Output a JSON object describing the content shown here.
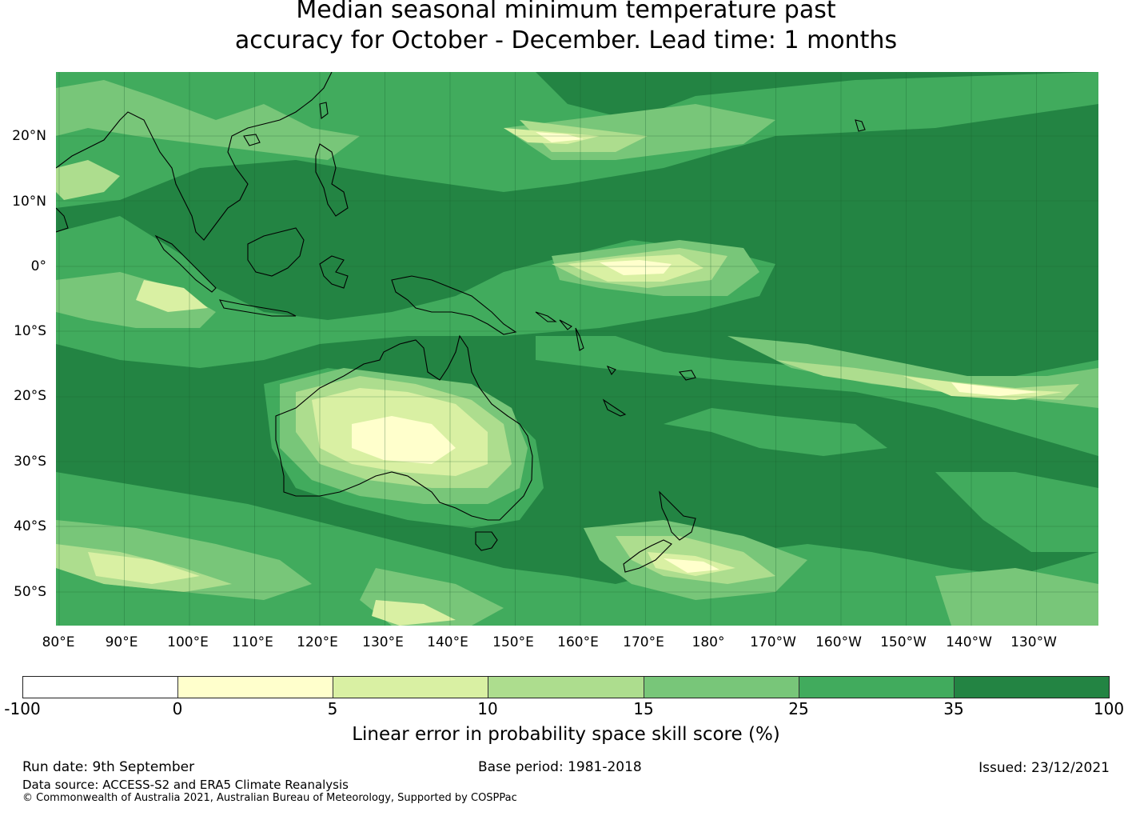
{
  "title": {
    "line1": "Median seasonal minimum temperature past",
    "line2": "accuracy for October - December. Lead time: 1 months"
  },
  "map": {
    "lat_labels": [
      "20°N",
      "10°N",
      "0°",
      "10°S",
      "20°S",
      "30°S",
      "40°S",
      "50°S"
    ],
    "lon_labels": [
      "80°E",
      "90°E",
      "100°E",
      "110°E",
      "120°E",
      "130°E",
      "140°E",
      "150°E",
      "160°E",
      "170°E",
      "180°",
      "170°W",
      "160°W",
      "150°W",
      "140°W",
      "130°W"
    ],
    "lon_range": [
      80,
      240
    ],
    "lat_range": [
      -55,
      30
    ],
    "gridlines": true
  },
  "colorbar": {
    "tick_labels": [
      "-100",
      "0",
      "5",
      "10",
      "15",
      "25",
      "35",
      "100"
    ],
    "colors": [
      "#ffffff",
      "#ffffcc",
      "#d9f0a3",
      "#addd8e",
      "#78c679",
      "#41ab5d",
      "#238443"
    ],
    "label": "Linear error in probability space skill score (%)"
  },
  "footer": {
    "run_date": "Run date: 9th September",
    "base_period": "Base period: 1981-2018",
    "issued": "Issued: 23/12/2021",
    "data_source": "Data source: ACCESS-S2 and ERA5 Climate Reanalysis",
    "copyright": "© Commonwealth of Australia 2021, Australian Bureau of Meteorology, Supported by COSPPac"
  }
}
